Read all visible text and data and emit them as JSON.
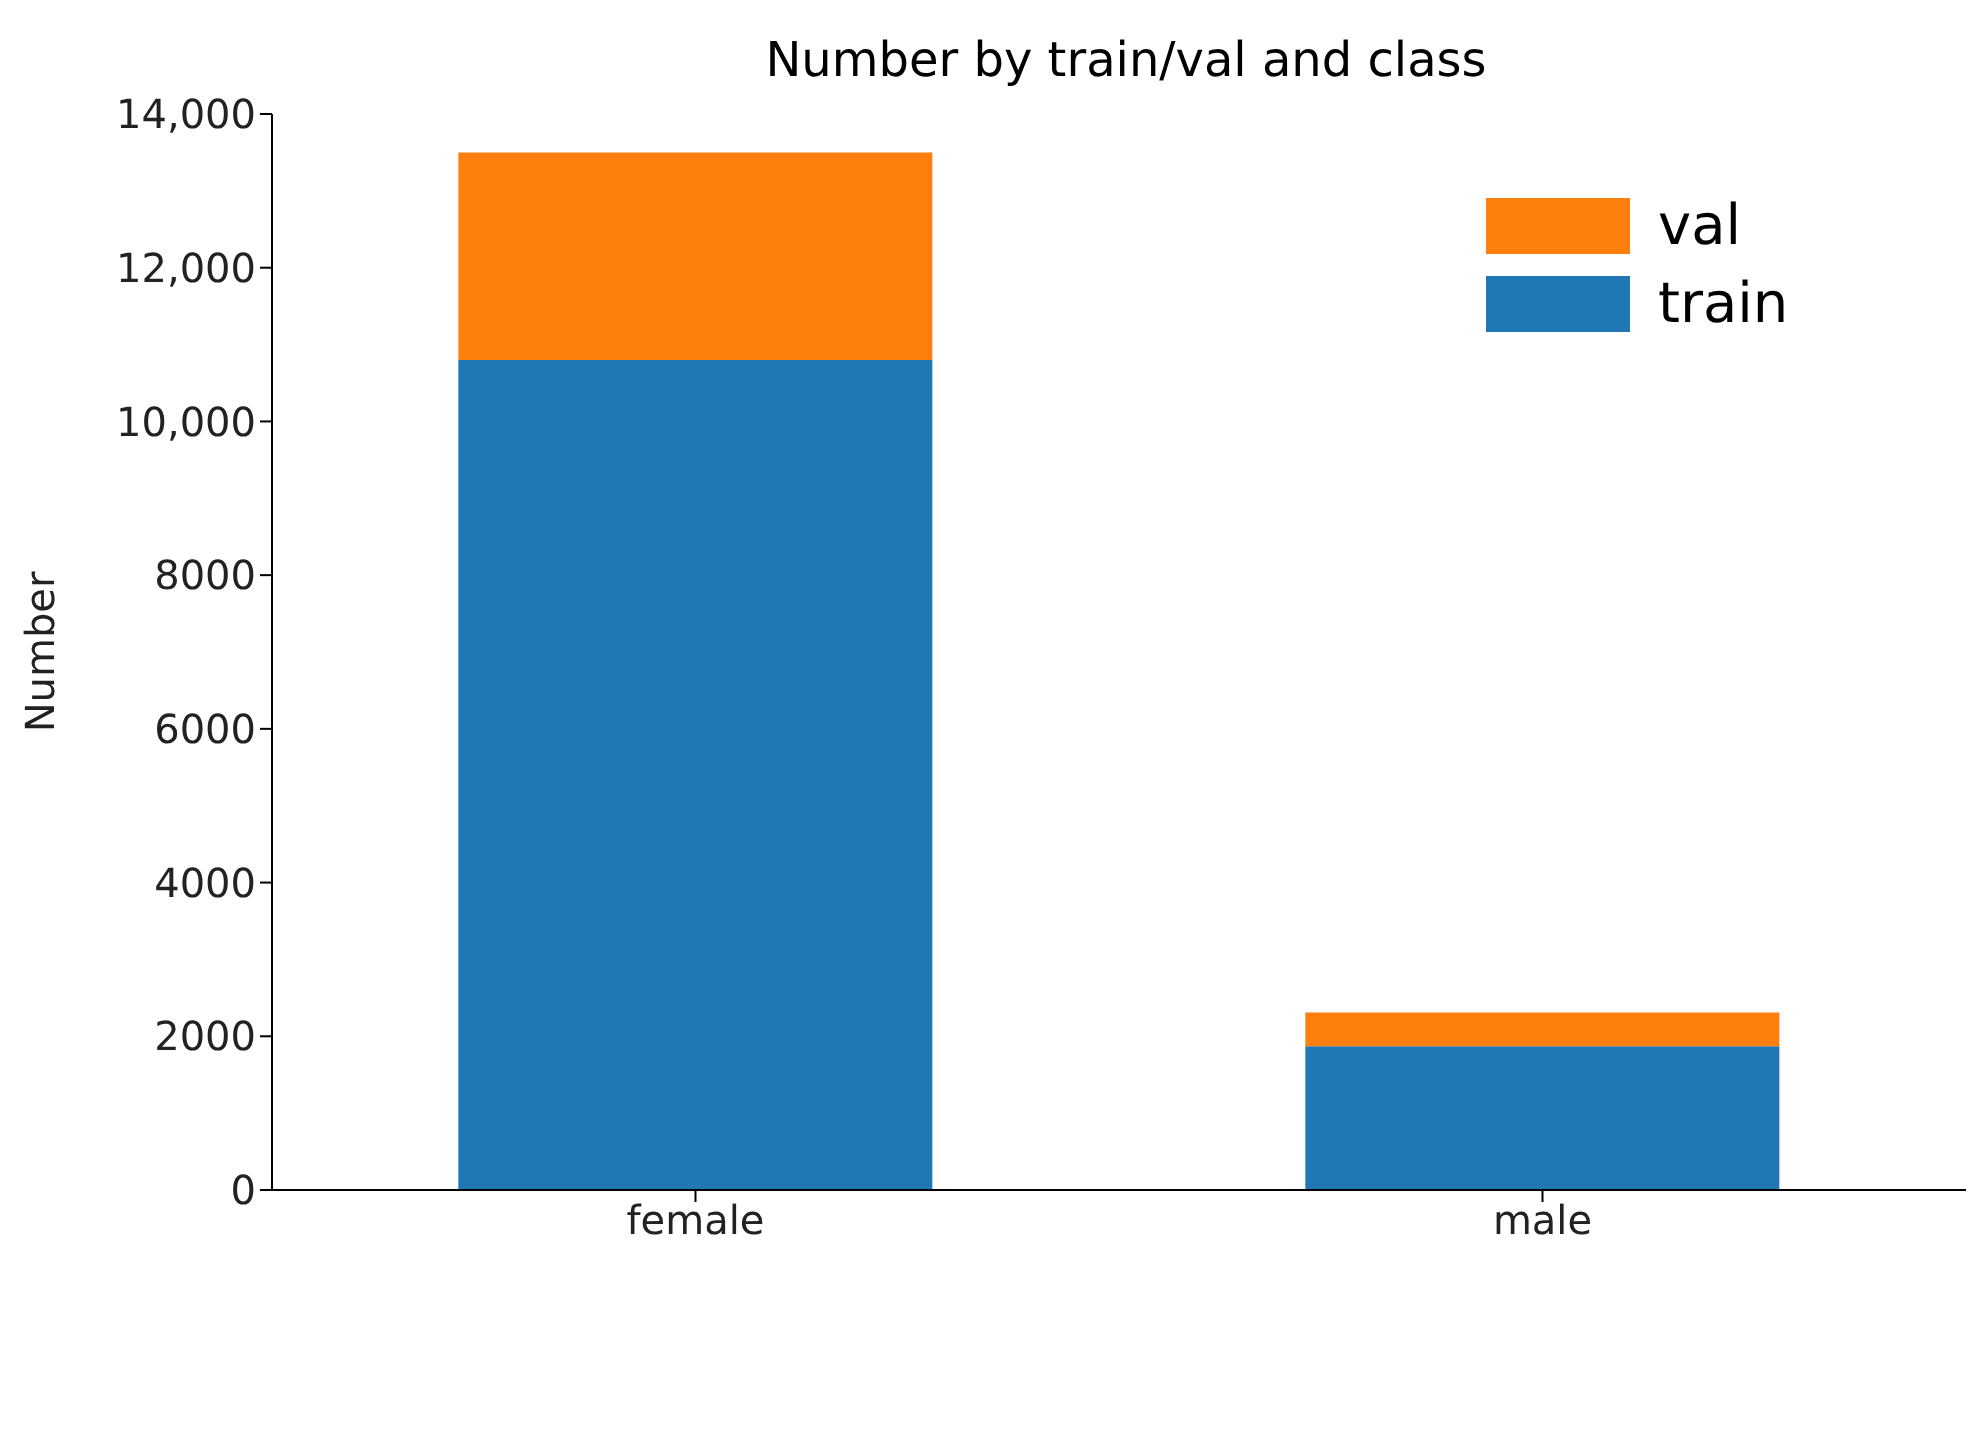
{
  "chart_data": {
    "type": "bar",
    "title": "Number by train/val and class",
    "ylabel": "Number",
    "categories": [
      "female",
      "male"
    ],
    "stacked": true,
    "series": [
      {
        "name": "train",
        "color": "#1f77b4",
        "values": [
          10800,
          1870
        ]
      },
      {
        "name": "val",
        "color": "#ff7f0e",
        "values": [
          2700,
          440
        ]
      }
    ],
    "ylim": [
      0,
      14000
    ],
    "yticks": [
      0,
      2000,
      4000,
      6000,
      8000,
      {
        "value": 10000,
        "label": "10,000"
      },
      {
        "value": 12000,
        "label": "12,000"
      },
      {
        "value": 14000,
        "label": "14,000"
      }
    ],
    "grid": false,
    "legend": "top right"
  }
}
